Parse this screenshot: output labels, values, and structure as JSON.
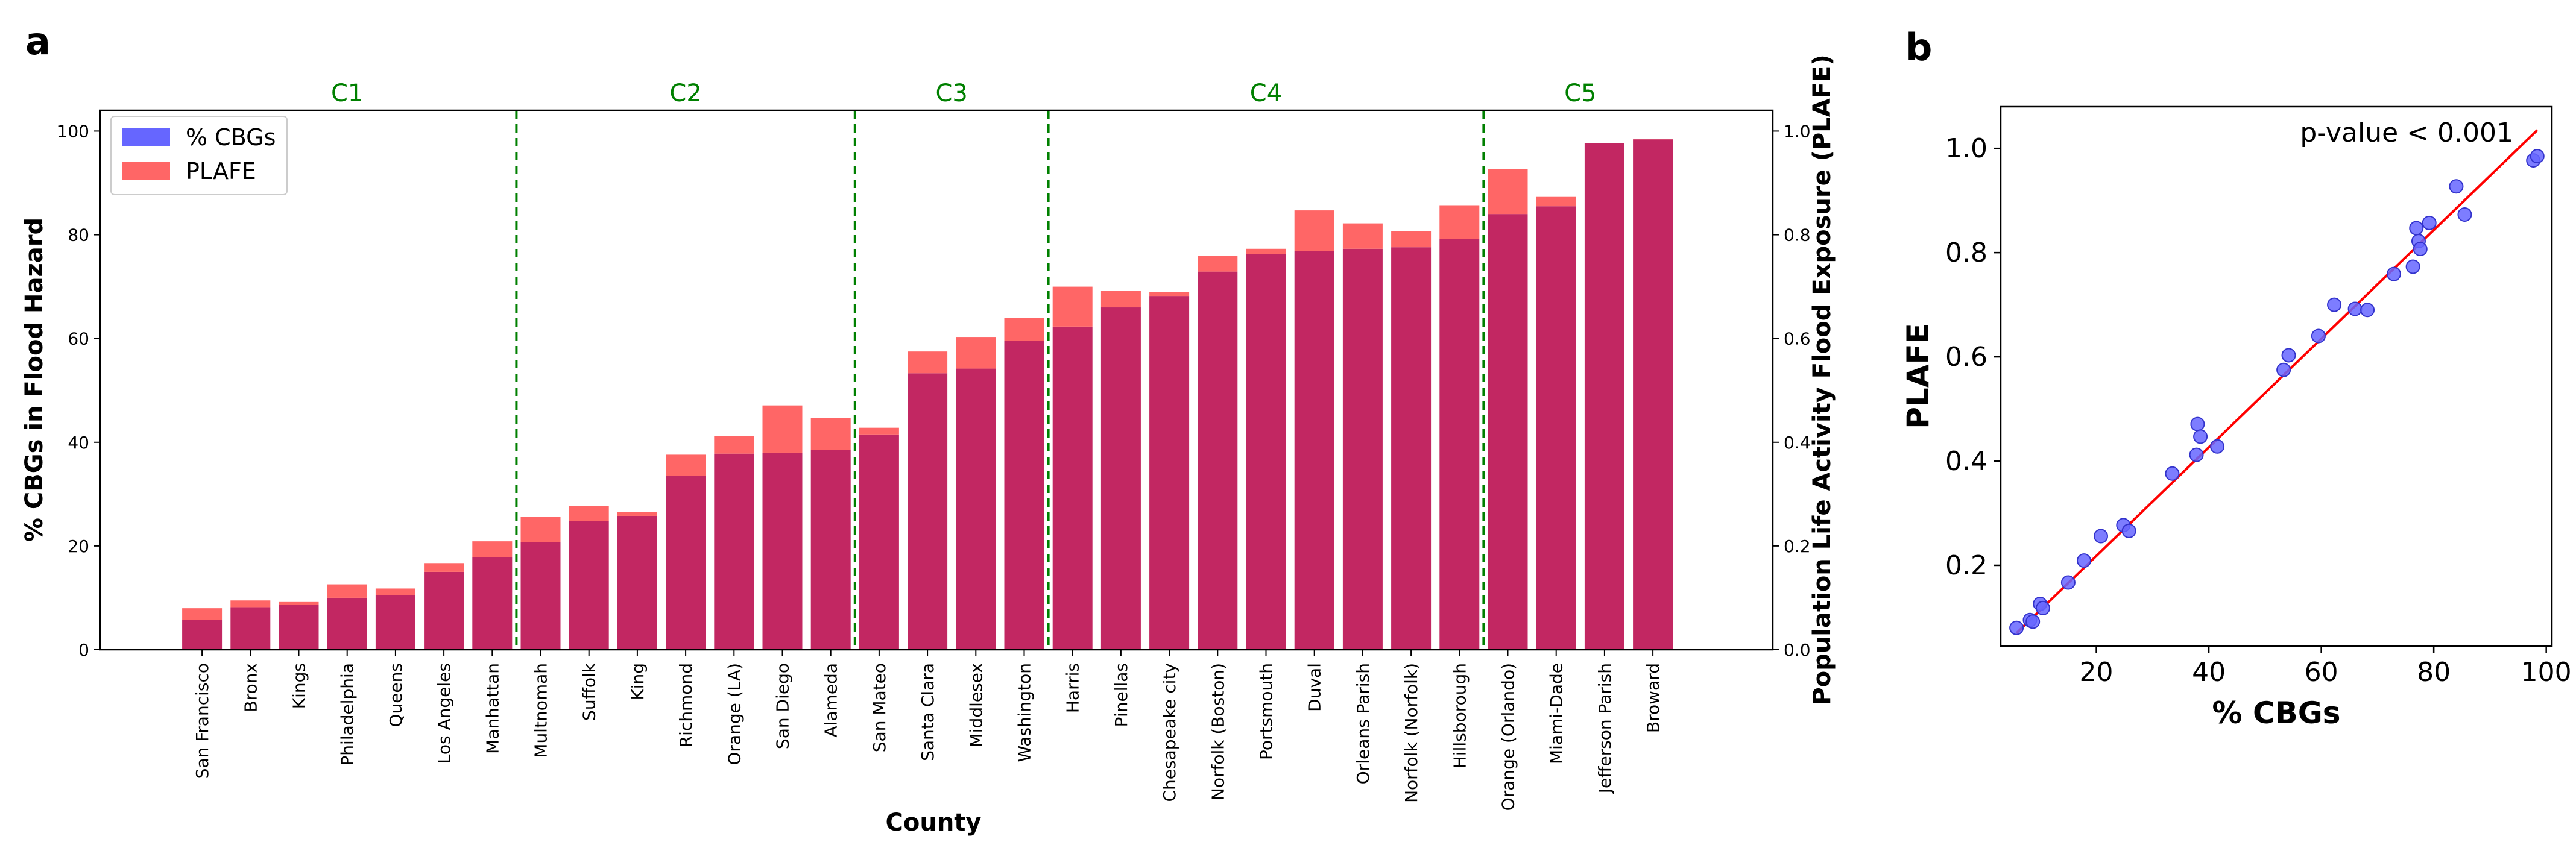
{
  "panel_labels": {
    "a": "a",
    "b": "b"
  },
  "colors": {
    "cbgs": "#6666ff",
    "plafe": "#ff6666",
    "overlap": "#c22762",
    "divider": "#008000",
    "cluster_label": "#008000",
    "fit_line": "#ff0000",
    "scatter_fill": "#6666ff",
    "scatter_edge": "#3333cc",
    "axis": "#000000"
  },
  "chart_data": [
    {
      "id": "a",
      "type": "bar",
      "xlabel": "County",
      "ylabel": "% CBGs in Flood Hazard",
      "ylabel_right": "Population Life Activity Flood Exposure (PLAFE)",
      "ylim": [
        0,
        104
      ],
      "yticks": [
        0,
        20,
        40,
        60,
        80,
        100
      ],
      "ylim_right": [
        0,
        1.04
      ],
      "yticks_right": [
        "0.0",
        "0.2",
        "0.4",
        "0.6",
        "0.8",
        "1.0"
      ],
      "legend": {
        "position": "top-left",
        "entries": [
          "% CBGs",
          "PLAFE"
        ]
      },
      "categories": [
        "San Francisco",
        "Bronx",
        "Kings",
        "Philadelphia",
        "Queens",
        "Los Angeles",
        "Manhattan",
        "Multnomah",
        "Suffolk",
        "King",
        "Richmond",
        "Orange (LA)",
        "San Diego",
        "Alameda",
        "San Mateo",
        "Santa Clara",
        "Middlesex",
        "Washington",
        "Harris",
        "Pinellas",
        "Chesapeake city",
        "Norfolk (Boston)",
        "Portsmouth",
        "Duval",
        "Orleans Parish",
        "Norfolk (Norfolk)",
        "Hillsborough",
        "Orange (Orlando)",
        "Miami-Dade",
        "Jefferson Parish",
        "Broward"
      ],
      "series": [
        {
          "name": "% CBGs",
          "axis": "left",
          "values": [
            5.8,
            8.2,
            8.7,
            10.0,
            10.5,
            15.0,
            17.8,
            20.8,
            24.8,
            25.8,
            33.5,
            37.8,
            38.0,
            38.5,
            41.5,
            53.3,
            54.2,
            59.5,
            62.3,
            66.0,
            68.2,
            72.9,
            76.3,
            76.9,
            77.3,
            77.6,
            79.2,
            84.0,
            85.5,
            97.7,
            98.4
          ]
        },
        {
          "name": "PLAFE",
          "axis": "right",
          "values": [
            0.08,
            0.095,
            0.092,
            0.126,
            0.118,
            0.167,
            0.209,
            0.256,
            0.277,
            0.266,
            0.376,
            0.412,
            0.471,
            0.447,
            0.428,
            0.575,
            0.603,
            0.64,
            0.7,
            0.692,
            0.69,
            0.759,
            0.773,
            0.847,
            0.822,
            0.807,
            0.857,
            0.927,
            0.873,
            0.977,
            0.985
          ]
        }
      ],
      "clusters": [
        {
          "label": "C1",
          "from": 0,
          "to": 6
        },
        {
          "label": "C2",
          "from": 7,
          "to": 13
        },
        {
          "label": "C3",
          "from": 14,
          "to": 17
        },
        {
          "label": "C4",
          "from": 18,
          "to": 26
        },
        {
          "label": "C5",
          "from": 27,
          "to": 30
        }
      ],
      "dividers_after_index": [
        6,
        13,
        17,
        26
      ]
    },
    {
      "id": "b",
      "type": "scatter",
      "xlabel": "% CBGs",
      "ylabel": "PLAFE",
      "xlim": [
        3,
        101
      ],
      "ylim": [
        0.045,
        1.08
      ],
      "xticks": [
        20,
        40,
        60,
        80,
        100
      ],
      "yticks": [
        "0.2",
        "0.4",
        "0.6",
        "0.8",
        "1.0"
      ],
      "annotation": "p-value < 0.001",
      "fit_line": {
        "x": [
          5.8,
          98.4
        ],
        "y": [
          0.07,
          1.035
        ]
      },
      "points": {
        "x": [
          5.8,
          8.2,
          8.7,
          10.0,
          10.5,
          15.0,
          17.8,
          20.8,
          24.8,
          25.8,
          33.5,
          37.8,
          38.0,
          38.5,
          41.5,
          53.3,
          54.2,
          59.5,
          62.3,
          66.0,
          68.2,
          72.9,
          76.3,
          76.9,
          77.3,
          77.6,
          79.2,
          84.0,
          85.5,
          97.7,
          98.4
        ],
        "y": [
          0.08,
          0.095,
          0.092,
          0.126,
          0.118,
          0.167,
          0.209,
          0.256,
          0.277,
          0.266,
          0.376,
          0.412,
          0.471,
          0.447,
          0.428,
          0.575,
          0.603,
          0.64,
          0.7,
          0.692,
          0.69,
          0.759,
          0.773,
          0.847,
          0.822,
          0.807,
          0.857,
          0.927,
          0.873,
          0.977,
          0.985
        ]
      }
    }
  ]
}
